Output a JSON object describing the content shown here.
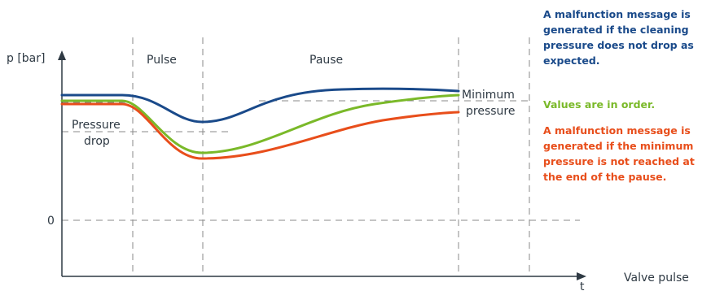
{
  "chart_data": {
    "type": "line",
    "ylabel": "p [bar]",
    "xlabel": "t",
    "zero_label": "0",
    "phases": [
      {
        "label": "Pulse"
      },
      {
        "label": "Pause"
      }
    ],
    "annotations": {
      "pressure_drop": [
        "Pressure",
        "drop"
      ],
      "minimum_pressure": [
        "Minimum",
        "pressure"
      ],
      "valve_pulse": "Valve pulse"
    },
    "series": [
      {
        "color": "#1a4a8a"
      },
      {
        "color": "#7ab929"
      },
      {
        "color": "#e84e1b"
      }
    ],
    "notes": [
      {
        "color": "#1a4a8a",
        "text": "A malfunction message is generated if the cleaning pressure does not drop as expected."
      },
      {
        "color": "#7ab929",
        "text": "Values are in order."
      },
      {
        "color": "#e84e1b",
        "text": "A malfunction message is generated if the minimum pressure is not reached at the end of the pause."
      }
    ],
    "grid": "dashed"
  }
}
